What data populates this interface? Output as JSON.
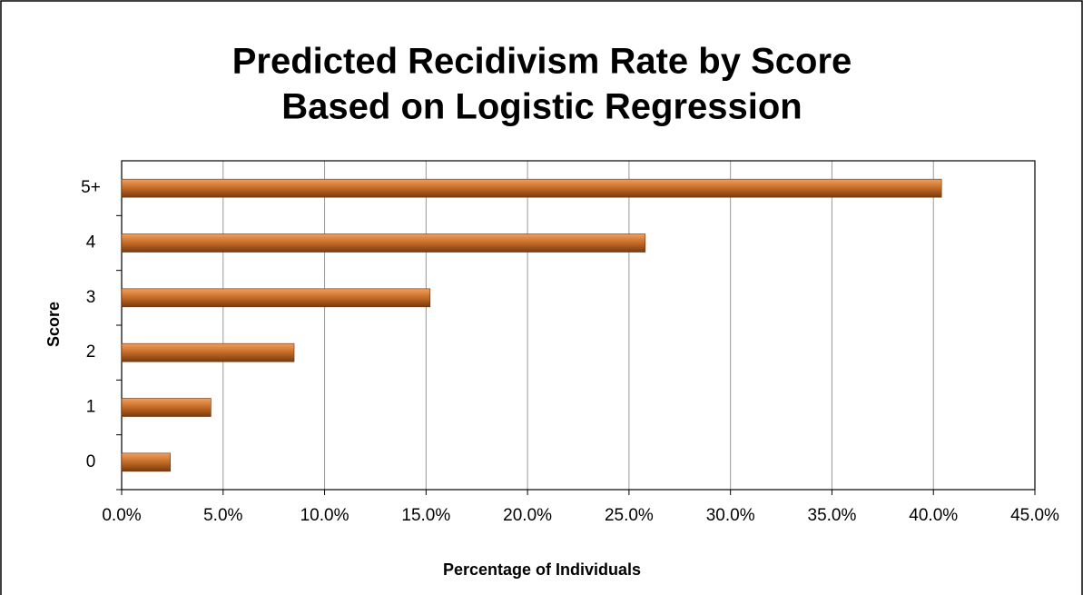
{
  "chart_data": {
    "type": "bar",
    "orientation": "horizontal",
    "title": [
      "Predicted Recidivism Rate by Score",
      "Based on Logistic Regression"
    ],
    "x_label": "Percentage of Individuals",
    "y_label": "Score",
    "categories": [
      "0",
      "1",
      "2",
      "3",
      "4",
      "5+"
    ],
    "values": [
      2.4,
      4.4,
      8.5,
      15.2,
      25.8,
      40.4
    ],
    "color": "#c0651f",
    "xlim": [
      0,
      45
    ],
    "xticks": [
      {
        "value": 0,
        "label": "0.0%"
      },
      {
        "value": 5,
        "label": "5.0%"
      },
      {
        "value": 10,
        "label": "10.0%"
      },
      {
        "value": 15,
        "label": "15.0%"
      },
      {
        "value": 20,
        "label": "20.0%"
      },
      {
        "value": 25,
        "label": "25.0%"
      },
      {
        "value": 30,
        "label": "30.0%"
      },
      {
        "value": 35,
        "label": "35.0%"
      },
      {
        "value": 40,
        "label": "40.0%"
      },
      {
        "value": 45,
        "label": "45.0%"
      }
    ],
    "grid": true
  }
}
